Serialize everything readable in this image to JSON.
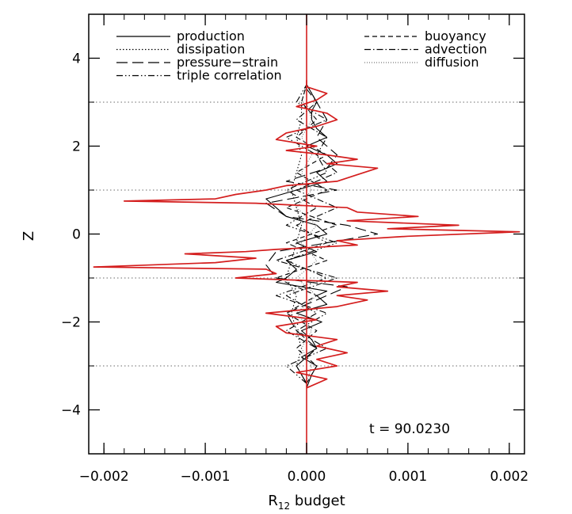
{
  "chart_data": {
    "type": "line",
    "title": "",
    "xlabel": "R",
    "xlabel_subscript": "12",
    "xlabel_suffix": " budget",
    "ylabel": "Z",
    "xlim": [
      -0.00215,
      0.00215
    ],
    "ylim": [
      -5,
      5
    ],
    "x_ticks": [
      -0.002,
      -0.001,
      0.0,
      0.001,
      0.002
    ],
    "x_tick_labels": [
      "−0.002",
      "−0.001",
      "0.000",
      "0.001",
      "0.002"
    ],
    "y_ticks": [
      -4,
      -2,
      0,
      2,
      4
    ],
    "y_tick_labels": [
      "−4",
      "−2",
      "0",
      "2",
      "4"
    ],
    "hgrid": [
      -3,
      -1,
      1,
      3
    ],
    "annotation": "t  =  90.0230",
    "legend_placement": "top",
    "legend": [
      {
        "name": "production",
        "dash": "solid"
      },
      {
        "name": "dissipation",
        "dash": "dotted"
      },
      {
        "name": "pressure−strain",
        "dash": "long-dash"
      },
      {
        "name": "triple correlation",
        "dash": "dash-dot-dot"
      },
      {
        "name": "buoyancy",
        "dash": "dashed"
      },
      {
        "name": "advection",
        "dash": "dash-dot"
      },
      {
        "name": "diffusion",
        "dash": "fine-dotted"
      }
    ],
    "series": [
      {
        "name": "production",
        "color": "#000000",
        "z": [
          -3.5,
          -3.2,
          -3.0,
          -2.8,
          -2.6,
          -2.4,
          -2.2,
          -2.0,
          -1.8,
          -1.6,
          -1.4,
          -1.3,
          -1.1,
          -1.0,
          -0.8,
          -0.6,
          -0.4,
          -0.2,
          0.0,
          0.2,
          0.4,
          0.6,
          0.8,
          1.0,
          1.2,
          1.4,
          1.6,
          1.8,
          2.0,
          2.2,
          2.4,
          2.6,
          2.8,
          3.0,
          3.2,
          3.4
        ],
        "x": [
          0.0,
          5e-05,
          0.0001,
          -5e-05,
          0.0001,
          5e-05,
          -5e-05,
          0.00015,
          -0.0001,
          0.0002,
          0.0001,
          0.0002,
          -0.0003,
          -0.0002,
          -0.0001,
          -0.0002,
          0.0001,
          -0.0001,
          0.0002,
          0.0001,
          -0.0002,
          -0.0003,
          -0.0004,
          -0.0001,
          0.0002,
          0.0001,
          0.0003,
          0.0002,
          0.0,
          0.0002,
          0.0001,
          5e-05,
          5e-05,
          0.0001,
          5e-05,
          0.0
        ]
      },
      {
        "name": "dissipation",
        "color": "#000000",
        "z": [
          -3.4,
          -3.0,
          -2.6,
          -2.2,
          -1.8,
          -1.4,
          -1.0,
          -0.6,
          -0.2,
          0.2,
          0.6,
          1.0,
          1.4,
          1.8,
          2.2,
          2.6,
          3.0,
          3.4
        ],
        "x": [
          0.0,
          -0.0001,
          -5e-05,
          -0.0001,
          -0.00015,
          -0.0001,
          -0.0002,
          -0.00015,
          -0.0001,
          -5e-05,
          -0.0001,
          -0.00015,
          -0.0001,
          -5e-05,
          -0.0001,
          -5e-05,
          -5e-05,
          0.0
        ]
      },
      {
        "name": "pressure−strain",
        "color": "#000000",
        "z": [
          -3.4,
          -3.0,
          -2.6,
          -2.2,
          -1.8,
          -1.4,
          -1.2,
          -1.0,
          -0.7,
          -0.4,
          -0.2,
          0.0,
          0.2,
          0.4,
          0.7,
          1.0,
          1.2,
          1.5,
          1.8,
          2.2,
          2.6,
          3.0,
          3.3
        ],
        "x": [
          0.0,
          -0.0001,
          0.0001,
          -0.0001,
          -0.0002,
          0.0002,
          0.0004,
          -0.0003,
          -0.0004,
          -0.0003,
          0.0002,
          0.0007,
          0.0004,
          -0.0002,
          -0.0004,
          0.0003,
          -0.0002,
          0.0002,
          0.0003,
          0.0001,
          0.0002,
          0.0001,
          0.0
        ]
      },
      {
        "name": "triple correlation",
        "color": "#000000",
        "z": [
          -3.4,
          -3.0,
          -2.6,
          -2.2,
          -1.8,
          -1.4,
          -1.0,
          -0.6,
          -0.2,
          0.2,
          0.6,
          1.0,
          1.4,
          1.8,
          2.2,
          2.6,
          3.0,
          3.4
        ],
        "x": [
          0.0,
          -0.0002,
          0.0002,
          -0.0001,
          0.0002,
          -0.0003,
          0.0002,
          -0.0002,
          0.0003,
          -0.0002,
          0.0001,
          -0.0002,
          0.0002,
          0.0001,
          -0.0002,
          0.0002,
          -0.0001,
          0.0
        ]
      },
      {
        "name": "buoyancy",
        "color": "#000000",
        "z": [
          -3.4,
          -3.0,
          -2.6,
          -2.2,
          -1.8,
          -1.4,
          -1.0,
          -0.6,
          -0.2,
          0.2,
          0.6,
          1.0,
          1.4,
          1.8,
          2.2,
          2.6,
          3.0,
          3.4
        ],
        "x": [
          0.0,
          0.0001,
          -0.0001,
          0.0001,
          -0.0002,
          0.0001,
          -0.0003,
          0.0002,
          -0.0002,
          0.0003,
          -0.0002,
          0.0002,
          -0.0001,
          0.0002,
          -0.0001,
          0.0001,
          -5e-05,
          0.0
        ]
      },
      {
        "name": "advection",
        "color": "#000000",
        "z": [
          -3.4,
          -3.0,
          -2.6,
          -2.2,
          -1.8,
          -1.4,
          -1.0,
          -0.6,
          -0.2,
          0.2,
          0.6,
          1.0,
          1.4,
          1.8,
          2.2,
          2.6,
          3.0,
          3.4
        ],
        "x": [
          0.0,
          -0.0001,
          0.0001,
          -0.0002,
          0.0001,
          -0.0002,
          0.0003,
          -0.0003,
          0.0002,
          -0.0001,
          0.0003,
          -0.0001,
          0.0003,
          0.0001,
          0.0002,
          -0.0001,
          0.0001,
          0.0
        ]
      },
      {
        "name": "diffusion",
        "color": "#777777",
        "z": [
          -3.4,
          -3.0,
          -2.6,
          -2.2,
          -1.8,
          -1.4,
          -1.0,
          -0.6,
          -0.2,
          0.2,
          0.6,
          1.0,
          1.4,
          1.8,
          2.2,
          2.6,
          3.0,
          3.4
        ],
        "x": [
          0.0,
          5e-05,
          -5e-05,
          5e-05,
          -0.0001,
          0.0001,
          -0.0001,
          0.0001,
          -5e-05,
          0.0001,
          -0.0001,
          5e-05,
          -5e-05,
          5e-05,
          -5e-05,
          5e-05,
          0.0,
          0.0
        ]
      },
      {
        "name": "",
        "color": "#d41e1e",
        "z": [
          -3.5,
          -3.3,
          -3.15,
          -3.0,
          -2.85,
          -2.7,
          -2.55,
          -2.4,
          -2.25,
          -2.1,
          -1.95,
          -1.8,
          -1.65,
          -1.5,
          -1.4,
          -1.3,
          -1.2,
          -1.1,
          -1.0,
          -0.9,
          -0.8,
          -0.75,
          -0.65,
          -0.55,
          -0.45,
          -0.4,
          -0.35,
          -0.25,
          -0.15,
          -0.05,
          0.05,
          0.12,
          0.2,
          0.3,
          0.4,
          0.5,
          0.6,
          0.7,
          0.75,
          0.8,
          0.9,
          1.0,
          1.1,
          1.2,
          1.35,
          1.5,
          1.6,
          1.7,
          1.8,
          1.9,
          2.0,
          2.15,
          2.3,
          2.45,
          2.6,
          2.75,
          2.9,
          3.05,
          3.2,
          3.35,
          3.5
        ],
        "x": [
          0.0,
          0.0002,
          -0.0001,
          0.0003,
          0.0001,
          0.0004,
          0.0001,
          0.0003,
          -0.0002,
          -0.0003,
          0.0001,
          -0.0004,
          0.0003,
          0.0006,
          0.0003,
          0.0008,
          0.0003,
          0.0005,
          -0.0007,
          -0.0003,
          -0.0004,
          -0.0021,
          -0.0009,
          -0.0005,
          -0.0012,
          -0.0006,
          -0.0003,
          0.0005,
          0.0003,
          0.001,
          0.0021,
          0.0008,
          0.0015,
          0.0004,
          0.0011,
          0.0005,
          0.0004,
          -0.0005,
          -0.0018,
          -0.0009,
          -0.0007,
          -0.0004,
          -0.0002,
          0.0003,
          0.0005,
          0.0007,
          0.0002,
          0.0005,
          0.0002,
          -0.0002,
          0.0001,
          -0.0003,
          -0.0002,
          0.0001,
          0.0003,
          0.0002,
          -0.0001,
          0.0001,
          0.0002,
          0.0,
          0.0
        ]
      }
    ]
  }
}
